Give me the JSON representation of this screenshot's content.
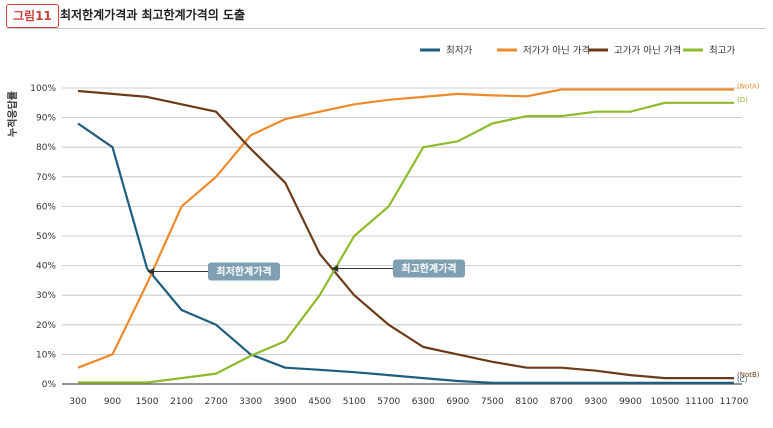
{
  "header": {
    "figure_label": "그림11",
    "title": "최저한계가격과 최고한계가격의 도출"
  },
  "colors": {
    "lowest": "#1f5d7e",
    "not_cheap": "#ee8a2c",
    "not_expensive": "#6b3a17",
    "highest": "#8dbb2c",
    "callout": "#7f9fb3"
  },
  "chart_data": {
    "type": "line",
    "ylabel": "누적응답률",
    "x": [
      300,
      900,
      1500,
      2100,
      2700,
      3300,
      3900,
      4500,
      5100,
      5700,
      6300,
      6900,
      7500,
      8100,
      8700,
      9300,
      9900,
      10500,
      11100,
      11700
    ],
    "yticks": [
      "0%",
      "10%",
      "20%",
      "30%",
      "40%",
      "50%",
      "60%",
      "70%",
      "80%",
      "90%",
      "100%"
    ],
    "ylim": [
      0,
      100
    ],
    "grid": true,
    "legend_position": "top-right",
    "series": [
      {
        "name": "최저가",
        "color": "#1f5d7e",
        "end_label": "(C)",
        "values": [
          88,
          80,
          39,
          25,
          20,
          10,
          5.5,
          4.8,
          4,
          3,
          2,
          1,
          0.4,
          0.4,
          0.4,
          0.4,
          0.4,
          0.4,
          0.4,
          0.4
        ]
      },
      {
        "name": "저가가 아닌 가격",
        "color": "#ee8a2c",
        "end_label": "(NotA)",
        "values": [
          5.5,
          10,
          34,
          60,
          70,
          84,
          89.5,
          92,
          94.5,
          96,
          97,
          98,
          97.5,
          97.2,
          99.5,
          99.5,
          99.5,
          99.5,
          99.5,
          99.5
        ]
      },
      {
        "name": "고가가 아닌 가격",
        "color": "#6b3a17",
        "end_label": "(NotB)",
        "values": [
          99,
          98,
          97,
          94.5,
          92,
          79.5,
          68,
          44,
          30,
          20,
          12.5,
          10,
          7.5,
          5.5,
          5.5,
          4.5,
          3,
          2,
          2,
          2
        ]
      },
      {
        "name": "최고가",
        "color": "#8dbb2c",
        "end_label": "(D)",
        "values": [
          0.5,
          0.5,
          0.5,
          2,
          3.5,
          9.5,
          14.5,
          30,
          50,
          60,
          80,
          82,
          88,
          90.5,
          90.5,
          92,
          92,
          95,
          95,
          95
        ]
      }
    ],
    "annotations": [
      {
        "text": "최저한계가격",
        "x": 1500,
        "y": 38
      },
      {
        "text": "최고한계가격",
        "x": 4700,
        "y": 39
      }
    ]
  }
}
